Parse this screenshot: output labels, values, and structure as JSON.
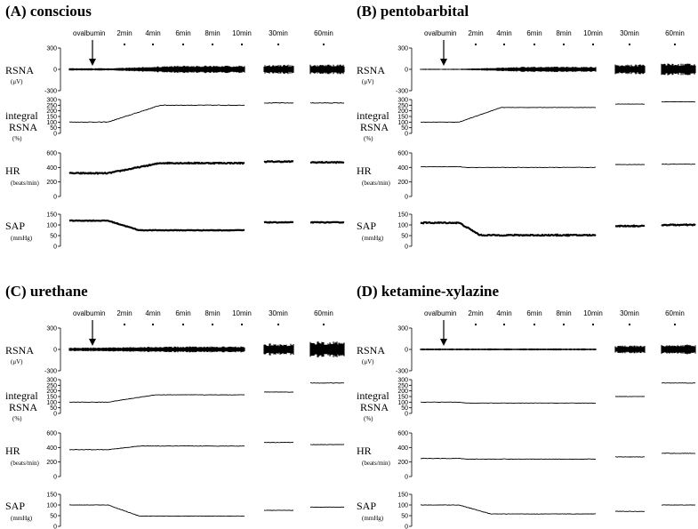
{
  "figure": {
    "panels": [
      {
        "id": "A",
        "title": "(A)  conscious",
        "arrow_label": "ovalbumin",
        "time_labels": [
          "2min",
          "4min",
          "6min",
          "8min",
          "10min",
          "30min",
          "60min"
        ],
        "channels": [
          {
            "key": "rsna",
            "label": "RSNA",
            "unit": "(μV)",
            "ticks": [
              "300",
              "0",
              "-300"
            ],
            "gmax": 300,
            "gmin": -300,
            "trace": "band",
            "pre": 16,
            "post": 52,
            "ramp": 0,
            "seg30": 65,
            "seg60": 68,
            "noise": 3
          },
          {
            "key": "int",
            "label": "integral RSNA",
            "unit": "(%)",
            "ticks": [
              "300",
              "250",
              "200",
              "150",
              "100",
              "50",
              "0"
            ],
            "gmax": 300,
            "gmin": 0,
            "trace": "line",
            "pre": 100,
            "post": 250,
            "ramp": 0.5,
            "seg30": 270,
            "seg60": 270,
            "noise": 6
          },
          {
            "key": "hr",
            "label": "HR",
            "unit": "(beats/min)",
            "ticks": [
              "600",
              "400",
              "200",
              "0"
            ],
            "gmax": 600,
            "gmin": 0,
            "trace": "thick",
            "pre": 320,
            "post": 460,
            "ramp": 0.5,
            "seg30": 480,
            "seg60": 470,
            "noise": 14
          },
          {
            "key": "sap",
            "label": "SAP",
            "unit": "(mmHg)",
            "ticks": [
              "150",
              "100",
              "50",
              "0"
            ],
            "gmax": 150,
            "gmin": 0,
            "trace": "thick",
            "pre": 120,
            "post": 75,
            "ramp": 0.3,
            "seg30": 112,
            "seg60": 112,
            "noise": 3
          }
        ]
      },
      {
        "id": "B",
        "title": "(B)  pentobarbital",
        "arrow_label": "ovalbumin",
        "time_labels": [
          "2min",
          "4min",
          "6min",
          "8min",
          "10min",
          "30min",
          "60min"
        ],
        "channels": [
          {
            "key": "rsna",
            "label": "RSNA",
            "unit": "(μV)",
            "ticks": [
              "300",
              "0",
              "-300"
            ],
            "gmax": 300,
            "gmin": -300,
            "trace": "band",
            "pre": 8,
            "post": 38,
            "ramp": 0,
            "seg30": 70,
            "seg60": 82,
            "noise": 3
          },
          {
            "key": "int",
            "label": "integral RSNA",
            "unit": "(%)",
            "ticks": [
              "300",
              "250",
              "200",
              "150",
              "100",
              "50",
              "0"
            ],
            "gmax": 300,
            "gmin": 0,
            "trace": "line",
            "pre": 100,
            "post": 230,
            "ramp": 0.4,
            "seg30": 260,
            "seg60": 280,
            "noise": 3
          },
          {
            "key": "hr",
            "label": "HR",
            "unit": "(beats/min)",
            "ticks": [
              "600",
              "400",
              "200",
              "0"
            ],
            "gmax": 600,
            "gmin": 0,
            "trace": "line",
            "pre": 410,
            "post": 400,
            "ramp": 0,
            "seg30": 440,
            "seg60": 445,
            "noise": 6
          },
          {
            "key": "sap",
            "label": "SAP",
            "unit": "(mmHg)",
            "ticks": [
              "150",
              "100",
              "50",
              "0"
            ],
            "gmax": 150,
            "gmin": 0,
            "trace": "thick",
            "pre": 110,
            "post": 52,
            "ramp": 0.2,
            "seg30": 95,
            "seg60": 100,
            "noise": 5
          }
        ]
      },
      {
        "id": "C",
        "title": "(C)  urethane",
        "arrow_label": "ovalbumin",
        "time_labels": [
          "2min",
          "4min",
          "6min",
          "8min",
          "10min",
          "30min",
          "60min"
        ],
        "channels": [
          {
            "key": "rsna",
            "label": "RSNA",
            "unit": "(μV)",
            "ticks": [
              "300",
              "0",
              "-300"
            ],
            "gmax": 300,
            "gmin": -300,
            "trace": "band",
            "pre": 28,
            "post": 42,
            "ramp": 0,
            "seg30": 85,
            "seg60": 110,
            "noise": 3
          },
          {
            "key": "int",
            "label": "integral RSNA",
            "unit": "(%)",
            "ticks": [
              "300",
              "250",
              "200",
              "150",
              "100",
              "50",
              "0"
            ],
            "gmax": 300,
            "gmin": 0,
            "trace": "line",
            "pre": 100,
            "post": 165,
            "ramp": 0.45,
            "seg30": 190,
            "seg60": 270,
            "noise": 4
          },
          {
            "key": "hr",
            "label": "HR",
            "unit": "(beats/min)",
            "ticks": [
              "600",
              "400",
              "200",
              "0"
            ],
            "gmax": 600,
            "gmin": 0,
            "trace": "line",
            "pre": 370,
            "post": 420,
            "ramp": 0.3,
            "seg30": 470,
            "seg60": 440,
            "noise": 6
          },
          {
            "key": "sap",
            "label": "SAP",
            "unit": "(mmHg)",
            "ticks": [
              "150",
              "100",
              "50",
              "0"
            ],
            "gmax": 150,
            "gmin": 0,
            "trace": "line",
            "pre": 100,
            "post": 48,
            "ramp": 0.3,
            "seg30": 75,
            "seg60": 90,
            "noise": 2
          }
        ]
      },
      {
        "id": "D",
        "title": "(D)  ketamine-xylazine",
        "arrow_label": "ovalbumin",
        "time_labels": [
          "2min",
          "4min",
          "6min",
          "8min",
          "10min",
          "30min",
          "60min"
        ],
        "channels": [
          {
            "key": "rsna",
            "label": "RSNA",
            "unit": "(μV)",
            "ticks": [
              "300",
              "0",
              "-300"
            ],
            "gmax": 300,
            "gmin": -300,
            "trace": "band",
            "pre": 14,
            "post": 14,
            "ramp": 0,
            "seg30": 55,
            "seg60": 70,
            "noise": 3
          },
          {
            "key": "int",
            "label": "integral RSNA",
            "unit": "(%)",
            "ticks": [
              "300",
              "250",
              "200",
              "150",
              "100",
              "50",
              "0"
            ],
            "gmax": 300,
            "gmin": 0,
            "trace": "line",
            "pre": 100,
            "post": 92,
            "ramp": 0,
            "seg30": 150,
            "seg60": 270,
            "noise": 3
          },
          {
            "key": "hr",
            "label": "HR",
            "unit": "(beats/min)",
            "ticks": [
              "600",
              "400",
              "200",
              "0"
            ],
            "gmax": 600,
            "gmin": 0,
            "trace": "line",
            "pre": 250,
            "post": 240,
            "ramp": 0,
            "seg30": 270,
            "seg60": 320,
            "noise": 8
          },
          {
            "key": "sap",
            "label": "SAP",
            "unit": "(mmHg)",
            "ticks": [
              "150",
              "100",
              "50",
              "0"
            ],
            "gmax": 150,
            "gmin": 0,
            "trace": "line",
            "pre": 100,
            "post": 58,
            "ramp": 0.3,
            "seg30": 70,
            "seg60": 100,
            "noise": 2
          }
        ]
      }
    ]
  }
}
